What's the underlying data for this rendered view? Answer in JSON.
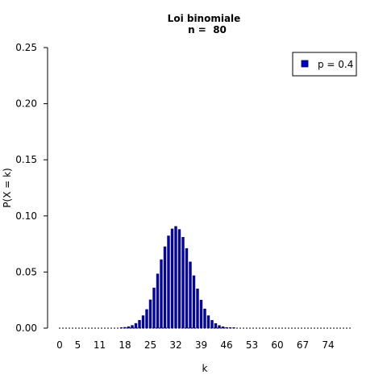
{
  "chart_data": {
    "type": "bar",
    "title": "Loi binomiale",
    "subtitle": "n =  80",
    "xlabel": "k",
    "ylabel": "P(X = k)",
    "xlim": [
      0,
      80
    ],
    "ylim": [
      0,
      0.25
    ],
    "y_ticks": [
      "0.00",
      "0.05",
      "0.10",
      "0.15",
      "0.20",
      "0.25"
    ],
    "x_ticks": [
      "0",
      "5",
      "11",
      "18",
      "25",
      "32",
      "39",
      "46",
      "53",
      "60",
      "67",
      "74"
    ],
    "grid": false,
    "legend_position": "top-right",
    "colors": {
      "bar": "#0000cc",
      "bar_outline": "#000033"
    },
    "series": [
      {
        "name": "p = 0.4",
        "x": [
          17,
          18,
          19,
          20,
          21,
          22,
          23,
          24,
          25,
          26,
          27,
          28,
          29,
          30,
          31,
          32,
          33,
          34,
          35,
          36,
          37,
          38,
          39,
          40,
          41,
          42,
          43,
          44,
          45,
          46,
          47,
          48
        ],
        "values": [
          0.0003,
          0.0007,
          0.0013,
          0.0024,
          0.0042,
          0.007,
          0.0111,
          0.0166,
          0.0252,
          0.0358,
          0.0483,
          0.061,
          0.0725,
          0.0822,
          0.0884,
          0.0906,
          0.0879,
          0.081,
          0.071,
          0.059,
          0.0467,
          0.035,
          0.025,
          0.0171,
          0.0111,
          0.0069,
          0.0041,
          0.0023,
          0.0012,
          0.0006,
          0.0003,
          0.0001
        ]
      }
    ]
  }
}
